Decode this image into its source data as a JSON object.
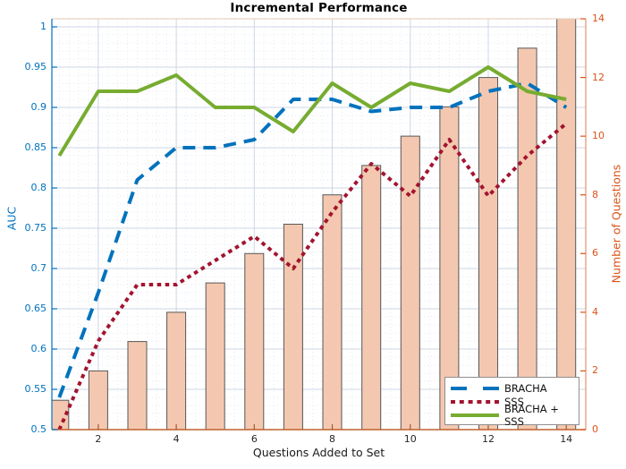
{
  "chart_data": {
    "type": "combo",
    "title": "Incremental Performance",
    "xlabel": "Questions Added to Set",
    "ylabel_left": "AUC",
    "ylabel_right": "Number of Questions",
    "x": [
      1,
      2,
      3,
      4,
      5,
      6,
      7,
      8,
      9,
      10,
      11,
      12,
      13,
      14
    ],
    "x_axis": {
      "range": [
        0.81,
        14.5
      ],
      "tick_values": [
        2,
        4,
        6,
        8,
        10,
        12,
        14
      ],
      "tick_labels": [
        "2",
        "4",
        "6",
        "8",
        "10",
        "12",
        "14"
      ],
      "label_color": "#262626",
      "spine_color": "#c0602c",
      "tick_color": "#9c5a32"
    },
    "left_axis": {
      "range": [
        0.5,
        1.01
      ],
      "tick_values": [
        0.5,
        0.55,
        0.6,
        0.65,
        0.7,
        0.75,
        0.8,
        0.85,
        0.9,
        0.95,
        1.0
      ],
      "tick_labels": [
        "0.5",
        "0.55",
        "0.6",
        "0.65",
        "0.7",
        "0.75",
        "0.8",
        "0.85",
        "0.9",
        "0.95",
        "1"
      ],
      "color": "#0072BD"
    },
    "right_axis": {
      "range": [
        0,
        14
      ],
      "tick_values": [
        0,
        2,
        4,
        6,
        8,
        10,
        12,
        14
      ],
      "tick_labels": [
        "0",
        "2",
        "4",
        "6",
        "8",
        "10",
        "12",
        "14"
      ],
      "color": "#D95319"
    },
    "grid": {
      "major": "on",
      "minor": "on",
      "major_color": "#ccd7e4",
      "minor_color": "#e4eaf2",
      "top_spine_color": "#e4cab6"
    },
    "series": [
      {
        "name": "BRACHA",
        "type": "line",
        "line_style": "dashed",
        "axis": "left",
        "color": "#0072BD",
        "values": [
          0.54,
          0.67,
          0.81,
          0.85,
          0.85,
          0.86,
          0.91,
          0.91,
          0.895,
          0.9,
          0.9,
          0.92,
          0.93,
          0.9
        ]
      },
      {
        "name": "SSS",
        "type": "line",
        "line_style": "dotted",
        "axis": "left",
        "color": "#A2142F",
        "values": [
          0.5,
          0.61,
          0.68,
          0.68,
          0.71,
          0.74,
          0.7,
          0.77,
          0.83,
          0.79,
          0.86,
          0.79,
          0.84,
          0.88
        ]
      },
      {
        "name": "BRACHA + SSS",
        "type": "line",
        "line_style": "solid",
        "axis": "left",
        "color": "#77AC30",
        "values": [
          0.84,
          0.92,
          0.92,
          0.94,
          0.9,
          0.9,
          0.87,
          0.93,
          0.9,
          0.93,
          0.92,
          0.95,
          0.92,
          0.91
        ]
      },
      {
        "name": "Number of Questions",
        "type": "bar",
        "axis": "right",
        "color": "#F4C8B0",
        "edge_color": "#585858",
        "values": [
          1,
          2,
          3,
          4,
          5,
          6,
          7,
          8,
          9,
          10,
          11,
          12,
          13,
          14
        ]
      }
    ],
    "legend": {
      "position": "bottom-right",
      "entries": [
        "BRACHA",
        "SSS",
        "BRACHA + SSS"
      ]
    }
  }
}
